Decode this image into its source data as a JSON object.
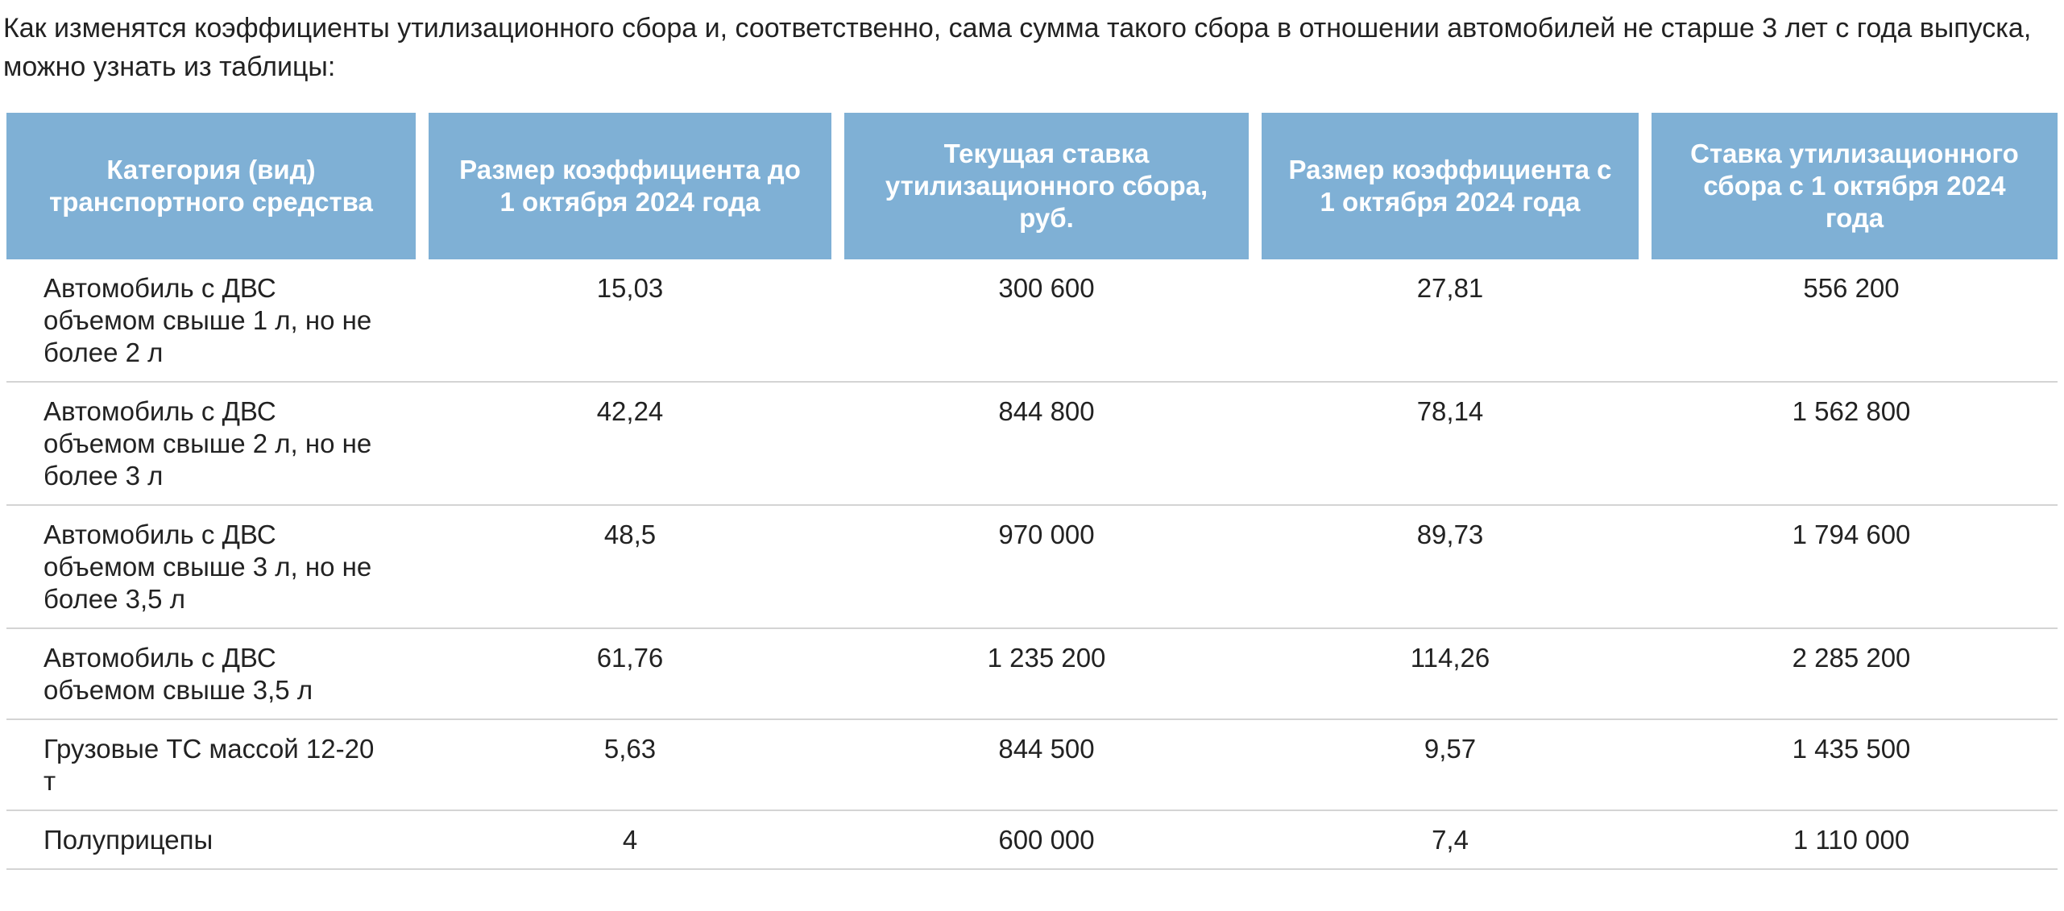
{
  "intro": "Как изменятся коэффициенты утилизационного сбора и, соответственно, сама сумма такого сбора в отношении автомобилей не старше 3 лет с года выпуска, можно узнать из таблицы:",
  "table": {
    "headers": [
      "Категория (вид) транспортного средства",
      "Размер коэффициента до 1 октября 2024 года",
      "Текущая ставка утилизационного сбора, руб.",
      "Размер коэффициента с 1 октября 2024 года",
      "Ставка утилизационного сбора с 1 октября 2024 года"
    ],
    "rows": [
      [
        "Автомобиль с ДВС объемом свыше 1 л, но не более 2 л",
        "15,03",
        "300 600",
        "27,81",
        "556 200"
      ],
      [
        "Автомобиль с ДВС объемом свыше 2 л, но не более 3 л",
        "42,24",
        "844 800",
        "78,14",
        "1 562 800"
      ],
      [
        "Автомобиль с ДВС объемом свыше 3 л, но не более 3,5 л",
        "48,5",
        "970 000",
        "89,73",
        "1 794 600"
      ],
      [
        "Автомобиль с ДВС объемом свыше 3,5 л",
        "61,76",
        "1 235 200",
        "114,26",
        "2 285 200"
      ],
      [
        "Грузовые ТС массой 12-20 т",
        "5,63",
        "844 500",
        "9,57",
        "1 435 500"
      ],
      [
        "Полуприцепы",
        "4",
        "600 000",
        "7,4",
        "1 110 000"
      ]
    ]
  },
  "colors": {
    "header_bg": "#7fb0d5",
    "header_text": "#ffffff",
    "body_text": "#222222",
    "row_divider": "#d4d4d4"
  }
}
